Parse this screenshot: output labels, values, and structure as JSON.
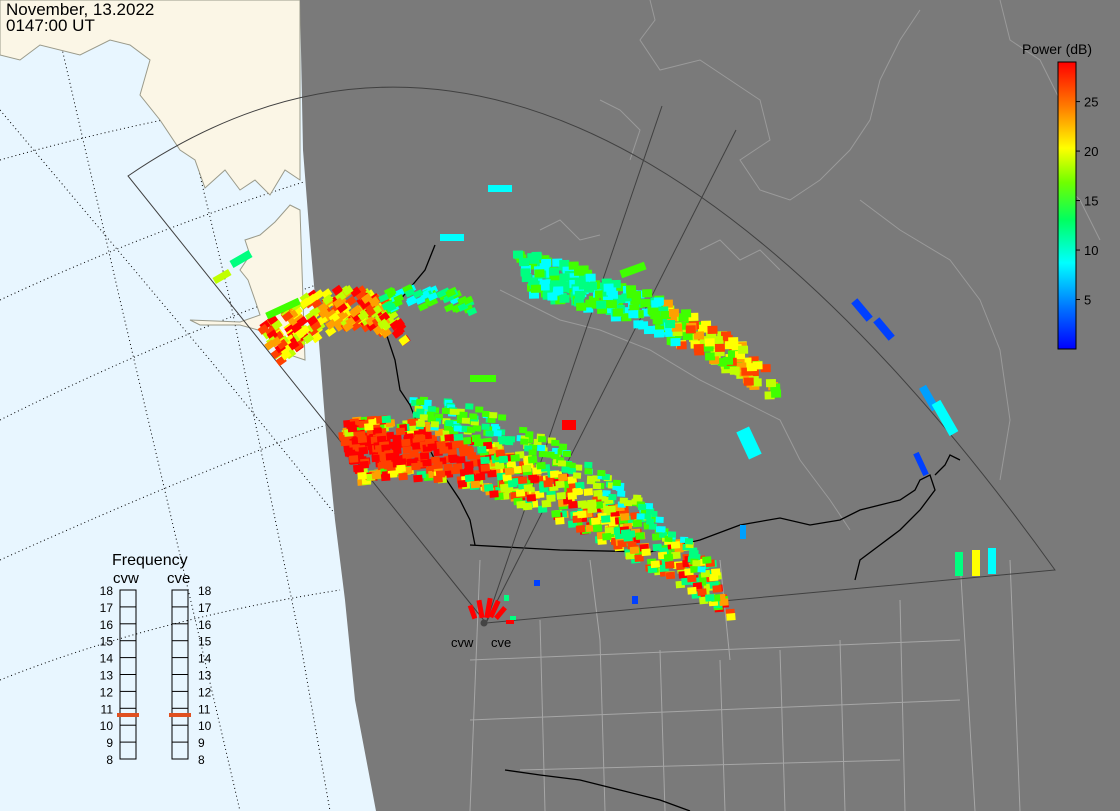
{
  "header": {
    "date": "November, 13.2022",
    "time": "0147:00 UT"
  },
  "colorbar": {
    "title": "Power (dB)",
    "ticks": [
      "25",
      "20",
      "15",
      "10",
      "5"
    ],
    "min_db": 0,
    "max_db": 29,
    "tick_values": [
      25,
      20,
      15,
      10,
      5
    ],
    "colors": [
      "#0000ff",
      "#0080ff",
      "#00e0ff",
      "#00ff80",
      "#60ff00",
      "#ffff00",
      "#ff8000",
      "#ff0000"
    ]
  },
  "radars": [
    {
      "id": "cvw",
      "label": "cvw",
      "frequency_mhz": 10.6
    },
    {
      "id": "cve",
      "label": "cve",
      "frequency_mhz": 10.6
    }
  ],
  "frequency_panel": {
    "title": "Frequency",
    "left_label": "cvw",
    "right_label": "cve",
    "scale": [
      "18",
      "17",
      "16",
      "15",
      "14",
      "13",
      "12",
      "11",
      "10",
      "9",
      "8"
    ],
    "min": 8,
    "max": 18,
    "marker_color": "#e05020"
  },
  "map_colors": {
    "ocean": "#e8f6ff",
    "land_day": "#fbf6e6",
    "night": "#7a7a7a",
    "boundary": "#000000",
    "state_lines": "#a0a0a0",
    "fov": "#444444"
  }
}
